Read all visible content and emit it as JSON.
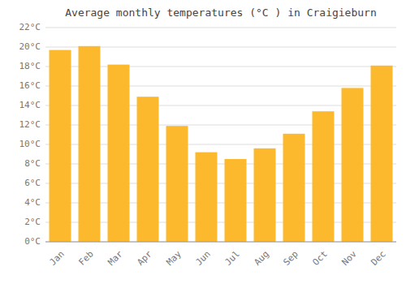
{
  "chart_data": {
    "type": "bar",
    "title": "Average monthly temperatures (°C ) in Craigieburn",
    "categories": [
      "Jan",
      "Feb",
      "Mar",
      "Apr",
      "May",
      "Jun",
      "Jul",
      "Aug",
      "Sep",
      "Oct",
      "Nov",
      "Dec"
    ],
    "values": [
      19.7,
      20.1,
      18.2,
      14.9,
      11.9,
      9.2,
      8.5,
      9.6,
      11.1,
      13.4,
      15.8,
      18.1
    ],
    "color": "#FDB92E",
    "ylim": [
      0,
      22
    ],
    "yticks": [
      {
        "value": 0,
        "label": "0°C"
      },
      {
        "value": 2,
        "label": "2°C"
      },
      {
        "value": 4,
        "label": "4°C"
      },
      {
        "value": 6,
        "label": "6°C"
      },
      {
        "value": 8,
        "label": "8°C"
      },
      {
        "value": 10,
        "label": "10°C"
      },
      {
        "value": 12,
        "label": "12°C"
      },
      {
        "value": 14,
        "label": "14°C"
      },
      {
        "value": 16,
        "label": "16°C"
      },
      {
        "value": 18,
        "label": "18°C"
      },
      {
        "value": 20,
        "label": "20°C"
      },
      {
        "value": 22,
        "label": "22°C"
      }
    ],
    "grid": true
  }
}
